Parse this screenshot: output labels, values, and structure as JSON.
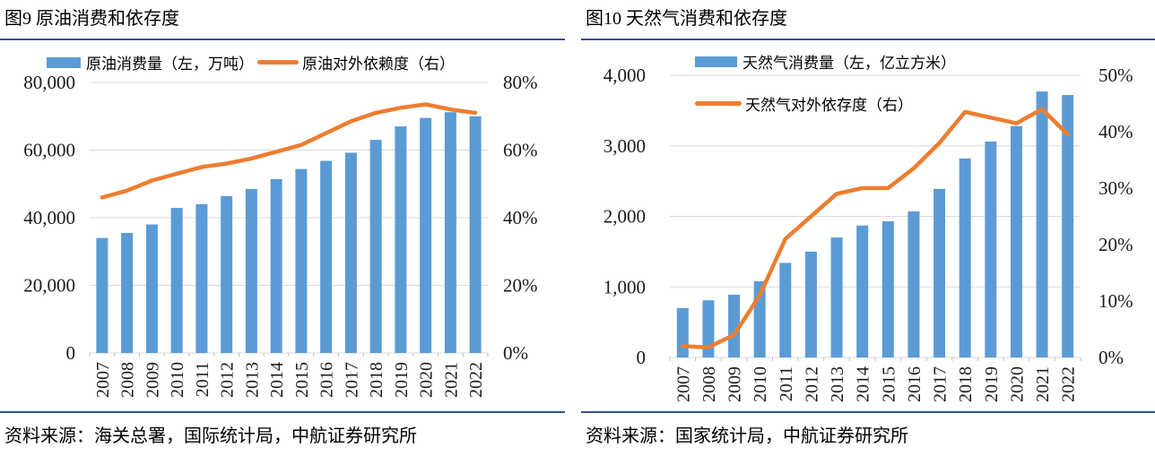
{
  "colors": {
    "bar": "#5B9BD5",
    "line": "#ED7D31",
    "divider": "#2F5597",
    "grid": "#D9D9D9",
    "tick": "#BFBFBF",
    "text": "#1A1A1A"
  },
  "chart_data": [
    {
      "type": "bar+line",
      "title": "图9 原油消费和依存度",
      "categories": [
        "2007",
        "2008",
        "2009",
        "2010",
        "2011",
        "2012",
        "2013",
        "2014",
        "2015",
        "2016",
        "2017",
        "2018",
        "2019",
        "2020",
        "2021",
        "2022"
      ],
      "series": [
        {
          "name": "原油消费量（左，万吨）",
          "type": "bar",
          "axis": "left",
          "unit": "万吨",
          "values": [
            34000,
            35500,
            38000,
            42900,
            44000,
            46400,
            48500,
            51400,
            54400,
            56800,
            59200,
            63000,
            67000,
            69500,
            71200,
            70000
          ]
        },
        {
          "name": "原油对外依赖度（右）",
          "type": "line",
          "axis": "right",
          "unit": "%",
          "values": [
            46,
            48,
            51,
            53,
            55,
            56,
            57.5,
            59.5,
            61.5,
            65,
            68.5,
            71,
            72.5,
            73.5,
            72,
            71
          ]
        }
      ],
      "left_axis": {
        "range": [
          0,
          80000
        ],
        "tick_values": [
          0,
          20000,
          40000,
          60000,
          80000
        ],
        "tick_labels": [
          "0",
          "20,000",
          "40,000",
          "60,000",
          "80,000"
        ]
      },
      "right_axis": {
        "range": [
          0,
          80
        ],
        "tick_values": [
          0,
          20,
          40,
          60,
          80
        ],
        "tick_labels": [
          "0%",
          "20%",
          "40%",
          "60%",
          "80%"
        ]
      },
      "grid": true,
      "legend_position": "top-inside",
      "source": "资料来源：海关总署，国际统计局，中航证券研究所"
    },
    {
      "type": "bar+line",
      "title": "图10 天然气消费和依存度",
      "categories": [
        "2007",
        "2008",
        "2009",
        "2010",
        "2011",
        "2012",
        "2013",
        "2014",
        "2015",
        "2016",
        "2017",
        "2018",
        "2019",
        "2020",
        "2021",
        "2022"
      ],
      "series": [
        {
          "name": "天然气消费量（左，亿立方米）",
          "type": "bar",
          "axis": "left",
          "unit": "亿立方米",
          "values": [
            700,
            810,
            890,
            1080,
            1340,
            1500,
            1700,
            1870,
            1930,
            2070,
            2390,
            2820,
            3060,
            3280,
            3770,
            3720
          ]
        },
        {
          "name": "天然气对外依存度（右）",
          "type": "line",
          "axis": "right",
          "unit": "%",
          "values": [
            2,
            1.8,
            4,
            11,
            21,
            25,
            29,
            30,
            30,
            33.5,
            38,
            43.5,
            42.5,
            41.5,
            44,
            39.5
          ]
        }
      ],
      "left_axis": {
        "range": [
          0,
          4000
        ],
        "tick_values": [
          0,
          1000,
          2000,
          3000,
          4000
        ],
        "tick_labels": [
          "0",
          "1,000",
          "2,000",
          "3,000",
          "4,000"
        ]
      },
      "right_axis": {
        "range": [
          0,
          50
        ],
        "tick_values": [
          0,
          10,
          20,
          30,
          40,
          50
        ],
        "tick_labels": [
          "0%",
          "10%",
          "20%",
          "30%",
          "40%",
          "50%"
        ]
      },
      "grid": true,
      "legend_position": "top-inside",
      "source": "资料来源：国家统计局，中航证券研究所"
    }
  ]
}
